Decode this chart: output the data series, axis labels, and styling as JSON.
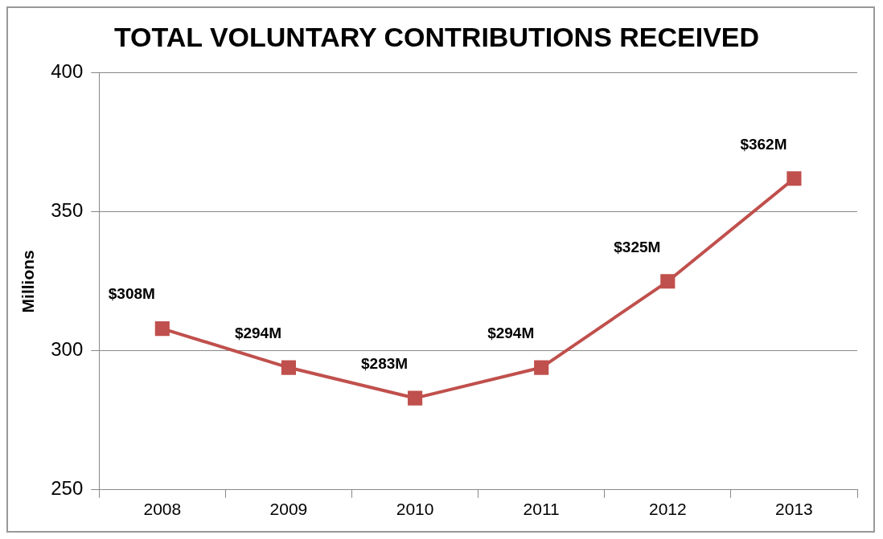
{
  "chart_data": {
    "type": "line",
    "title": "TOTAL VOLUNTARY CONTRIBUTIONS RECEIVED",
    "ylabel": "Millions",
    "categories": [
      "2008",
      "2009",
      "2010",
      "2011",
      "2012",
      "2013"
    ],
    "series": [
      {
        "color": "#c0504d",
        "values": [
          308,
          294,
          283,
          294,
          325,
          362
        ],
        "value_labels": [
          "$308M",
          "$294M",
          "$283M",
          "$294M",
          "$325M",
          "$362M"
        ]
      }
    ],
    "ylim": [
      250,
      400
    ],
    "yticks": [
      250,
      300,
      350,
      400
    ],
    "grid": "y",
    "marker": "square",
    "line_style": "solid",
    "legend": false
  }
}
